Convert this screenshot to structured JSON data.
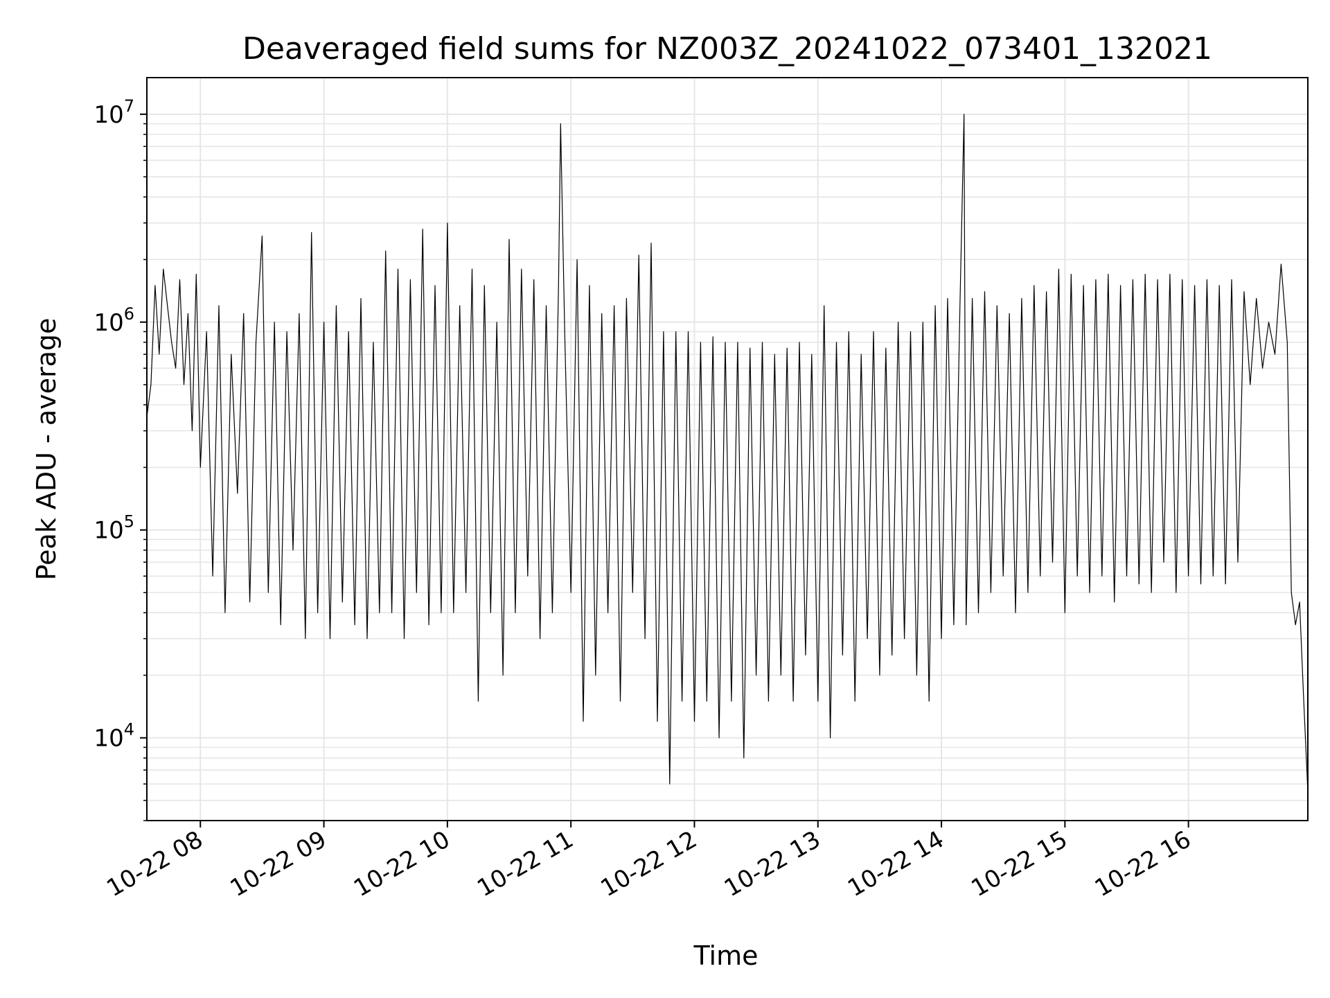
{
  "chart_data": {
    "type": "line",
    "title": "Deaveraged field sums for NZ003Z_20241022_073401_132021",
    "xlabel": "Time",
    "ylabel": "Peak ADU - average",
    "yscale": "log",
    "ylim": [
      4000,
      15000000
    ],
    "xlim": [
      "2024-10-22 07:34",
      "2024-10-22 16:58"
    ],
    "grid": "on (major and minor)",
    "line_color": "#000000",
    "x_ticks": [
      "10-22 08",
      "10-22 09",
      "10-22 10",
      "10-22 11",
      "10-22 12",
      "10-22 13",
      "10-22 14",
      "10-22 15",
      "10-22 16"
    ],
    "y_ticks": [
      {
        "base": "10",
        "exp": "4",
        "value": 10000
      },
      {
        "base": "10",
        "exp": "5",
        "value": 100000
      },
      {
        "base": "10",
        "exp": "6",
        "value": 1000000
      },
      {
        "base": "10",
        "exp": "7",
        "value": 10000000
      }
    ],
    "series": [
      {
        "x": [
          "2024-10-22 07:34",
          "2024-10-22 07:36",
          "2024-10-22 07:38",
          "2024-10-22 07:40",
          "2024-10-22 07:42",
          "2024-10-22 07:44",
          "2024-10-22 07:46",
          "2024-10-22 07:48",
          "2024-10-22 07:50",
          "2024-10-22 07:52",
          "2024-10-22 07:54",
          "2024-10-22 07:56",
          "2024-10-22 07:58",
          "2024-10-22 08:00",
          "2024-10-22 08:03",
          "2024-10-22 08:06",
          "2024-10-22 08:09",
          "2024-10-22 08:12",
          "2024-10-22 08:15",
          "2024-10-22 08:18",
          "2024-10-22 08:21",
          "2024-10-22 08:24",
          "2024-10-22 08:27",
          "2024-10-22 08:30",
          "2024-10-22 08:33",
          "2024-10-22 08:36",
          "2024-10-22 08:39",
          "2024-10-22 08:42",
          "2024-10-22 08:45",
          "2024-10-22 08:48",
          "2024-10-22 08:51",
          "2024-10-22 08:54",
          "2024-10-22 08:57",
          "2024-10-22 09:00",
          "2024-10-22 09:03",
          "2024-10-22 09:06",
          "2024-10-22 09:09",
          "2024-10-22 09:12",
          "2024-10-22 09:15",
          "2024-10-22 09:18",
          "2024-10-22 09:21",
          "2024-10-22 09:24",
          "2024-10-22 09:27",
          "2024-10-22 09:30",
          "2024-10-22 09:33",
          "2024-10-22 09:36",
          "2024-10-22 09:39",
          "2024-10-22 09:42",
          "2024-10-22 09:45",
          "2024-10-22 09:48",
          "2024-10-22 09:51",
          "2024-10-22 09:54",
          "2024-10-22 09:57",
          "2024-10-22 10:00",
          "2024-10-22 10:03",
          "2024-10-22 10:06",
          "2024-10-22 10:09",
          "2024-10-22 10:12",
          "2024-10-22 10:15",
          "2024-10-22 10:18",
          "2024-10-22 10:21",
          "2024-10-22 10:24",
          "2024-10-22 10:27",
          "2024-10-22 10:30",
          "2024-10-22 10:33",
          "2024-10-22 10:36",
          "2024-10-22 10:39",
          "2024-10-22 10:42",
          "2024-10-22 10:45",
          "2024-10-22 10:48",
          "2024-10-22 10:51",
          "2024-10-22 10:54",
          "2024-10-22 10:55",
          "2024-10-22 10:57",
          "2024-10-22 11:00",
          "2024-10-22 11:03",
          "2024-10-22 11:06",
          "2024-10-22 11:09",
          "2024-10-22 11:12",
          "2024-10-22 11:15",
          "2024-10-22 11:18",
          "2024-10-22 11:21",
          "2024-10-22 11:24",
          "2024-10-22 11:27",
          "2024-10-22 11:30",
          "2024-10-22 11:33",
          "2024-10-22 11:36",
          "2024-10-22 11:39",
          "2024-10-22 11:42",
          "2024-10-22 11:45",
          "2024-10-22 11:48",
          "2024-10-22 11:51",
          "2024-10-22 11:54",
          "2024-10-22 11:57",
          "2024-10-22 12:00",
          "2024-10-22 12:03",
          "2024-10-22 12:06",
          "2024-10-22 12:09",
          "2024-10-22 12:12",
          "2024-10-22 12:15",
          "2024-10-22 12:18",
          "2024-10-22 12:21",
          "2024-10-22 12:24",
          "2024-10-22 12:27",
          "2024-10-22 12:30",
          "2024-10-22 12:33",
          "2024-10-22 12:36",
          "2024-10-22 12:39",
          "2024-10-22 12:42",
          "2024-10-22 12:45",
          "2024-10-22 12:48",
          "2024-10-22 12:51",
          "2024-10-22 12:54",
          "2024-10-22 12:57",
          "2024-10-22 13:00",
          "2024-10-22 13:03",
          "2024-10-22 13:06",
          "2024-10-22 13:09",
          "2024-10-22 13:12",
          "2024-10-22 13:15",
          "2024-10-22 13:18",
          "2024-10-22 13:21",
          "2024-10-22 13:24",
          "2024-10-22 13:27",
          "2024-10-22 13:30",
          "2024-10-22 13:33",
          "2024-10-22 13:36",
          "2024-10-22 13:39",
          "2024-10-22 13:42",
          "2024-10-22 13:45",
          "2024-10-22 13:48",
          "2024-10-22 13:51",
          "2024-10-22 13:54",
          "2024-10-22 13:57",
          "2024-10-22 14:00",
          "2024-10-22 14:03",
          "2024-10-22 14:06",
          "2024-10-22 14:09",
          "2024-10-22 14:11",
          "2024-10-22 14:12",
          "2024-10-22 14:15",
          "2024-10-22 14:18",
          "2024-10-22 14:21",
          "2024-10-22 14:24",
          "2024-10-22 14:27",
          "2024-10-22 14:30",
          "2024-10-22 14:33",
          "2024-10-22 14:36",
          "2024-10-22 14:39",
          "2024-10-22 14:42",
          "2024-10-22 14:45",
          "2024-10-22 14:48",
          "2024-10-22 14:51",
          "2024-10-22 14:54",
          "2024-10-22 14:57",
          "2024-10-22 15:00",
          "2024-10-22 15:03",
          "2024-10-22 15:06",
          "2024-10-22 15:09",
          "2024-10-22 15:12",
          "2024-10-22 15:15",
          "2024-10-22 15:18",
          "2024-10-22 15:21",
          "2024-10-22 15:24",
          "2024-10-22 15:27",
          "2024-10-22 15:30",
          "2024-10-22 15:33",
          "2024-10-22 15:36",
          "2024-10-22 15:39",
          "2024-10-22 15:42",
          "2024-10-22 15:45",
          "2024-10-22 15:48",
          "2024-10-22 15:51",
          "2024-10-22 15:54",
          "2024-10-22 15:57",
          "2024-10-22 16:00",
          "2024-10-22 16:03",
          "2024-10-22 16:06",
          "2024-10-22 16:09",
          "2024-10-22 16:12",
          "2024-10-22 16:15",
          "2024-10-22 16:18",
          "2024-10-22 16:21",
          "2024-10-22 16:24",
          "2024-10-22 16:27",
          "2024-10-22 16:30",
          "2024-10-22 16:33",
          "2024-10-22 16:36",
          "2024-10-22 16:39",
          "2024-10-22 16:42",
          "2024-10-22 16:45",
          "2024-10-22 16:48",
          "2024-10-22 16:50",
          "2024-10-22 16:52",
          "2024-10-22 16:54",
          "2024-10-22 16:56",
          "2024-10-22 16:58"
        ],
        "values": [
          350000,
          500000,
          1500000,
          700000,
          1800000,
          1200000,
          800000,
          600000,
          1600000,
          500000,
          1100000,
          300000,
          1700000,
          200000,
          900000,
          60000,
          1200000,
          40000,
          700000,
          150000,
          1100000,
          45000,
          800000,
          2600000,
          50000,
          1000000,
          35000,
          900000,
          80000,
          1100000,
          30000,
          2700000,
          40000,
          1000000,
          30000,
          1200000,
          45000,
          900000,
          35000,
          1300000,
          30000,
          800000,
          40000,
          2200000,
          40000,
          1800000,
          30000,
          1600000,
          50000,
          2800000,
          35000,
          1500000,
          40000,
          3000000,
          40000,
          1200000,
          50000,
          1800000,
          15000,
          1500000,
          40000,
          1000000,
          20000,
          2500000,
          40000,
          1800000,
          60000,
          1600000,
          30000,
          1200000,
          40000,
          1500000,
          9000000,
          900000,
          50000,
          2000000,
          12000,
          1500000,
          20000,
          1100000,
          40000,
          1200000,
          15000,
          1300000,
          50000,
          2100000,
          30000,
          2400000,
          12000,
          900000,
          6000,
          900000,
          15000,
          900000,
          12000,
          800000,
          15000,
          850000,
          10000,
          800000,
          15000,
          800000,
          8000,
          750000,
          20000,
          800000,
          15000,
          700000,
          20000,
          750000,
          15000,
          800000,
          25000,
          700000,
          15000,
          1200000,
          10000,
          800000,
          25000,
          900000,
          15000,
          700000,
          30000,
          900000,
          20000,
          750000,
          25000,
          1000000,
          30000,
          900000,
          20000,
          1000000,
          15000,
          1200000,
          30000,
          1300000,
          35000,
          1200000,
          10000000,
          35000,
          1300000,
          40000,
          1400000,
          50000,
          1200000,
          60000,
          1100000,
          40000,
          1300000,
          50000,
          1500000,
          60000,
          1400000,
          70000,
          1800000,
          40000,
          1700000,
          60000,
          1500000,
          50000,
          1600000,
          60000,
          1700000,
          45000,
          1500000,
          60000,
          1600000,
          55000,
          1700000,
          50000,
          1600000,
          70000,
          1700000,
          50000,
          1600000,
          60000,
          1500000,
          55000,
          1600000,
          60000,
          1500000,
          55000,
          1600000,
          70000,
          1400000,
          500000,
          1300000,
          600000,
          1000000,
          700000,
          1900000,
          800000,
          50000,
          35000,
          45000,
          15000,
          5500
        ]
      }
    ]
  }
}
